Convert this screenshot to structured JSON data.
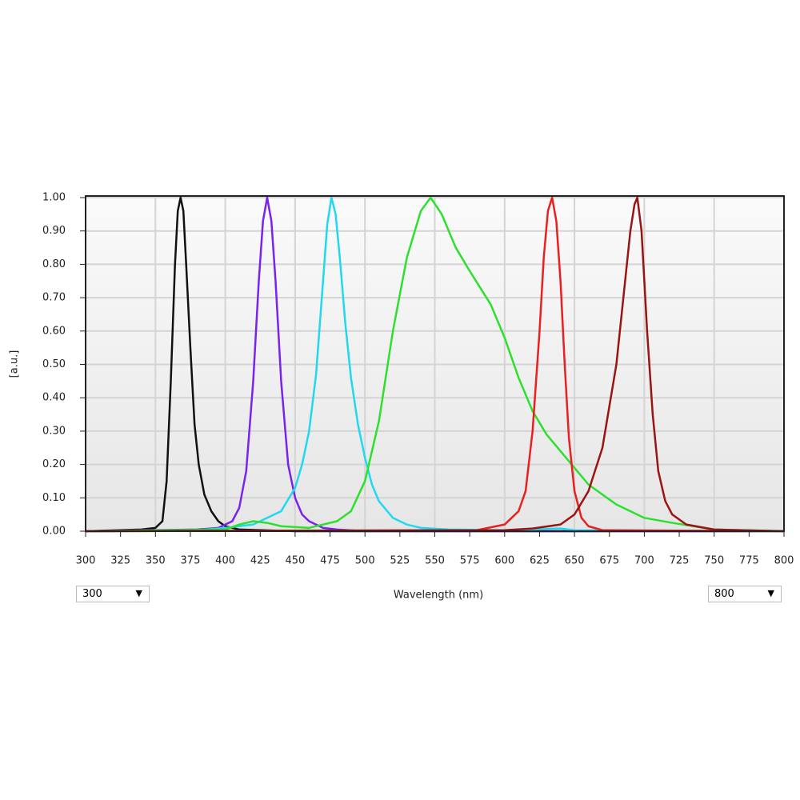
{
  "chart_data": {
    "type": "line",
    "ylabel": "[a.u.]",
    "xlabel": "Wavelength (nm)",
    "xlim": [
      300,
      800
    ],
    "ylim": [
      0,
      1
    ],
    "xticks": [
      300,
      325,
      350,
      375,
      400,
      425,
      450,
      475,
      500,
      525,
      550,
      575,
      600,
      625,
      650,
      675,
      700,
      725,
      750,
      775,
      800
    ],
    "yticks": [
      {
        "value": 0,
        "label": "0.00"
      },
      {
        "value": 0.1,
        "label": "0.10"
      },
      {
        "value": 0.2,
        "label": "0.20"
      },
      {
        "value": 0.3,
        "label": "0.30"
      },
      {
        "value": 0.4,
        "label": "0.40"
      },
      {
        "value": 0.5,
        "label": "0.50"
      },
      {
        "value": 0.6,
        "label": "0.60"
      },
      {
        "value": 0.7,
        "label": "0.70"
      },
      {
        "value": 0.8,
        "label": "0.80"
      },
      {
        "value": 0.9,
        "label": "0.90"
      },
      {
        "value": 1,
        "label": "1.00"
      }
    ],
    "grid": true,
    "series": [
      {
        "color": "#111111",
        "x": [
          300,
          340,
          350,
          355,
          358,
          361,
          364,
          366,
          368,
          370,
          372,
          375,
          378,
          381,
          385,
          390,
          395,
          400,
          410,
          450,
          800
        ],
        "values": [
          0,
          0.005,
          0.01,
          0.03,
          0.15,
          0.45,
          0.8,
          0.96,
          1.0,
          0.96,
          0.8,
          0.55,
          0.32,
          0.2,
          0.11,
          0.06,
          0.03,
          0.015,
          0.005,
          0,
          0
        ]
      },
      {
        "color": "#7a22ee",
        "x": [
          300,
          380,
          395,
          405,
          410,
          415,
          420,
          424,
          427,
          430,
          433,
          436,
          440,
          445,
          450,
          455,
          460,
          470,
          480,
          500,
          800
        ],
        "values": [
          0,
          0.005,
          0.01,
          0.03,
          0.07,
          0.18,
          0.45,
          0.75,
          0.93,
          1.0,
          0.93,
          0.75,
          0.45,
          0.2,
          0.1,
          0.05,
          0.03,
          0.01,
          0.005,
          0,
          0
        ]
      },
      {
        "color": "#22d8f0",
        "x": [
          300,
          380,
          400,
          420,
          440,
          450,
          455,
          460,
          465,
          470,
          473,
          476,
          479,
          482,
          486,
          490,
          495,
          500,
          505,
          510,
          520,
          530,
          540,
          560,
          600,
          640,
          650,
          800
        ],
        "values": [
          0,
          0.003,
          0.01,
          0.02,
          0.06,
          0.13,
          0.2,
          0.3,
          0.47,
          0.75,
          0.92,
          1.0,
          0.95,
          0.82,
          0.62,
          0.46,
          0.32,
          0.22,
          0.14,
          0.09,
          0.04,
          0.02,
          0.01,
          0.005,
          0.003,
          0.008,
          0.003,
          0
        ]
      },
      {
        "color": "#2ee02e",
        "x": [
          300,
          400,
          410,
          420,
          430,
          440,
          460,
          480,
          490,
          500,
          510,
          520,
          530,
          540,
          547,
          555,
          565,
          575,
          590,
          600,
          610,
          620,
          630,
          640,
          650,
          660,
          680,
          700,
          720,
          750,
          800
        ],
        "values": [
          0,
          0.005,
          0.02,
          0.03,
          0.025,
          0.015,
          0.01,
          0.03,
          0.06,
          0.15,
          0.33,
          0.6,
          0.82,
          0.96,
          1.0,
          0.95,
          0.85,
          0.78,
          0.68,
          0.58,
          0.46,
          0.36,
          0.29,
          0.24,
          0.19,
          0.14,
          0.08,
          0.04,
          0.025,
          0.005,
          0
        ]
      },
      {
        "color": "#e82020",
        "x": [
          300,
          580,
          600,
          610,
          615,
          620,
          625,
          628,
          631,
          634,
          637,
          640,
          643,
          646,
          650,
          655,
          660,
          670,
          800
        ],
        "values": [
          0,
          0.003,
          0.02,
          0.06,
          0.12,
          0.3,
          0.6,
          0.82,
          0.96,
          1.0,
          0.93,
          0.75,
          0.5,
          0.28,
          0.12,
          0.04,
          0.015,
          0.003,
          0
        ]
      },
      {
        "color": "#9a1414",
        "x": [
          300,
          600,
          620,
          640,
          650,
          660,
          670,
          680,
          685,
          690,
          693,
          695,
          698,
          702,
          706,
          710,
          715,
          720,
          730,
          750,
          800
        ],
        "values": [
          0,
          0.003,
          0.008,
          0.02,
          0.05,
          0.12,
          0.25,
          0.5,
          0.7,
          0.9,
          0.98,
          1.0,
          0.9,
          0.6,
          0.35,
          0.18,
          0.09,
          0.05,
          0.02,
          0.005,
          0
        ]
      }
    ]
  },
  "controls": {
    "x_min_select": "300",
    "x_max_select": "800"
  }
}
